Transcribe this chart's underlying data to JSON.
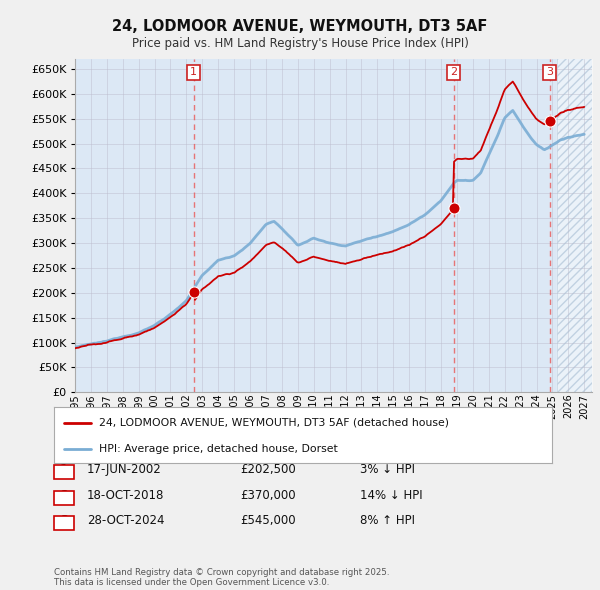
{
  "title": "24, LODMOOR AVENUE, WEYMOUTH, DT3 5AF",
  "subtitle": "Price paid vs. HM Land Registry's House Price Index (HPI)",
  "xlim_start": 1995.0,
  "xlim_end": 2027.5,
  "ylim": [
    0,
    670000
  ],
  "yticks": [
    0,
    50000,
    100000,
    150000,
    200000,
    250000,
    300000,
    350000,
    400000,
    450000,
    500000,
    550000,
    600000,
    650000
  ],
  "sale_dates": [
    2002.46,
    2018.79,
    2024.82
  ],
  "sale_prices": [
    202500,
    370000,
    545000
  ],
  "sale_labels": [
    "1",
    "2",
    "3"
  ],
  "sale_info": [
    {
      "label": "1",
      "date": "17-JUN-2002",
      "price": "£202,500",
      "pct": "3% ↓ HPI"
    },
    {
      "label": "2",
      "date": "18-OCT-2018",
      "price": "£370,000",
      "pct": "14% ↓ HPI"
    },
    {
      "label": "3",
      "date": "28-OCT-2024",
      "price": "£545,000",
      "pct": "8% ↑ HPI"
    }
  ],
  "legend_line1": "24, LODMOOR AVENUE, WEYMOUTH, DT3 5AF (detached house)",
  "legend_line2": "HPI: Average price, detached house, Dorset",
  "footnote": "Contains HM Land Registry data © Crown copyright and database right 2025.\nThis data is licensed under the Open Government Licence v3.0.",
  "bg_color": "#f0f0f0",
  "plot_bg_color": "#dce8f5",
  "hpi_color": "#7aadd4",
  "price_color": "#cc0000",
  "vline_color": "#e86060",
  "dot_color": "#cc0000",
  "hatch_region_start": 2025.3,
  "hatch_color": "#c8d8ea"
}
